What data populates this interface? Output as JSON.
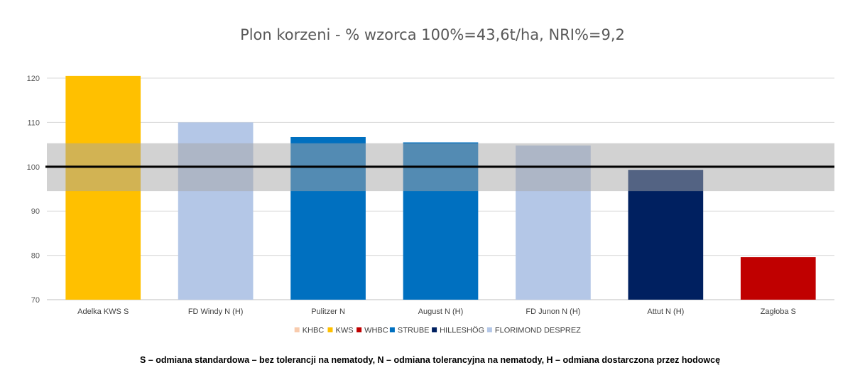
{
  "chart_data": {
    "type": "bar",
    "title": "Plon korzeni - % wzorca 100%=43,6t/ha, NRI%=9,2",
    "xlabel": "",
    "ylabel": "",
    "ylim": [
      70,
      120
    ],
    "yticks": [
      70,
      80,
      90,
      100,
      110,
      120
    ],
    "grid": true,
    "legend_position": "bottom",
    "categories": [
      "Adelka KWS S",
      "FD Windy N (H)",
      "Pulitzer N",
      "August  N (H)",
      "FD Junon  N (H)",
      "Attut  N (H)",
      "Zagłoba S"
    ],
    "values": [
      120.5,
      110.0,
      106.7,
      105.5,
      104.8,
      99.3,
      79.6
    ],
    "bar_breeders": [
      "KWS",
      "FLORIMOND DESPREZ",
      "STRUBE",
      "STRUBE",
      "FLORIMOND DESPREZ",
      "HILLESHÖG",
      "WHBC"
    ],
    "legend": [
      {
        "name": "KHBC",
        "color": "#F8CBAD"
      },
      {
        "name": "KWS",
        "color": "#FFC000"
      },
      {
        "name": "WHBC",
        "color": "#C00000"
      },
      {
        "name": "STRUBE",
        "color": "#0070C0"
      },
      {
        "name": "HILLESHÖG",
        "color": "#002060"
      },
      {
        "name": "FLORIMOND DESPREZ",
        "color": "#B4C7E7"
      }
    ],
    "reference_line": 100,
    "nri_band": [
      94.5,
      105.3
    ],
    "band_color": "#A6A6A6"
  },
  "footnote": "S – odmiana standardowa – bez tolerancji na nematody, N – odmiana tolerancyjna na nematody, H – odmiana dostarczona przez hodowcę"
}
